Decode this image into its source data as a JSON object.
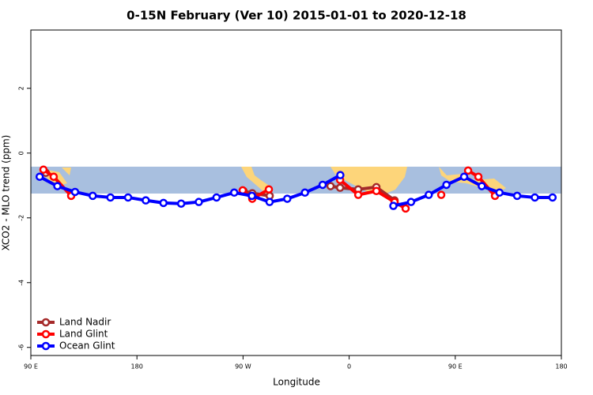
{
  "chart_data": {
    "type": "line",
    "title": "0-15N February (Ver 10)   2015-01-01 to 2020-12-18",
    "xlabel": "Longitude",
    "ylabel": "XCO2 - MLO trend (ppm)",
    "xlim": [
      90,
      540
    ],
    "ylim": [
      -6.25,
      3.8
    ],
    "xticks": [
      {
        "value": 90,
        "label": "90 E"
      },
      180,
      {
        "value": 270,
        "label": "90 W"
      },
      {
        "value": 360,
        "label": "0"
      },
      {
        "value": 450,
        "label": "90 E"
      },
      {
        "value": 540,
        "label": "180"
      }
    ],
    "yticks": [
      -6,
      -4,
      -2,
      0,
      2
    ],
    "legend": "bottom left",
    "series": [
      {
        "name": "Land Nadir",
        "color": "#a52a2a",
        "x": [
          102.7,
          null,
          270.4,
          277.8,
          292.6,
          null,
          344.2,
          352.3,
          367.7,
          383.1,
          398.5
        ],
        "values": [
          -0.61,
          null,
          -1.17,
          -1.24,
          -1.32,
          null,
          -1.02,
          -1.07,
          -1.12,
          -1.05,
          -1.46
        ]
      },
      {
        "name": "Land Glint",
        "color": "#ff0000",
        "x": [
          100.7,
          109.4,
          124.2,
          null,
          269.7,
          277.8,
          291.9,
          null,
          352.3,
          367.7,
          383.1,
          398.5,
          407.9,
          null,
          438.1,
          null,
          460.9,
          469.6,
          483.7
        ],
        "values": [
          -0.51,
          -0.73,
          -1.32,
          null,
          -1.15,
          -1.41,
          -1.12,
          null,
          -0.83,
          -1.29,
          -1.17,
          -1.51,
          -1.71,
          null,
          -1.29,
          null,
          -0.54,
          -0.73,
          -1.32
        ]
      },
      {
        "name": "Ocean Glint",
        "color": "#0000ff",
        "x": [
          97.5,
          112.5,
          127.5,
          142.5,
          157.5,
          172.5,
          187.5,
          202.5,
          217.5,
          232.5,
          247.5,
          262.5,
          277.5,
          292.5,
          307.5,
          322.5,
          337.5,
          352.5,
          367.5,
          382.5,
          397.5,
          412.5,
          427.5,
          442.5,
          457.5,
          472.5,
          487.5,
          502.5,
          517.5,
          532.5
        ],
        "values": [
          -0.73,
          -1.02,
          -1.2,
          -1.32,
          -1.37,
          -1.37,
          -1.46,
          -1.54,
          -1.56,
          -1.51,
          -1.37,
          -1.22,
          -1.32,
          -1.51,
          -1.41,
          -1.22,
          -0.98,
          -0.68,
          null,
          null,
          -1.63,
          -1.51,
          -1.29,
          -0.98,
          -0.73,
          -1.02,
          -1.22,
          -1.32,
          -1.37,
          -1.37
        ]
      }
    ]
  }
}
